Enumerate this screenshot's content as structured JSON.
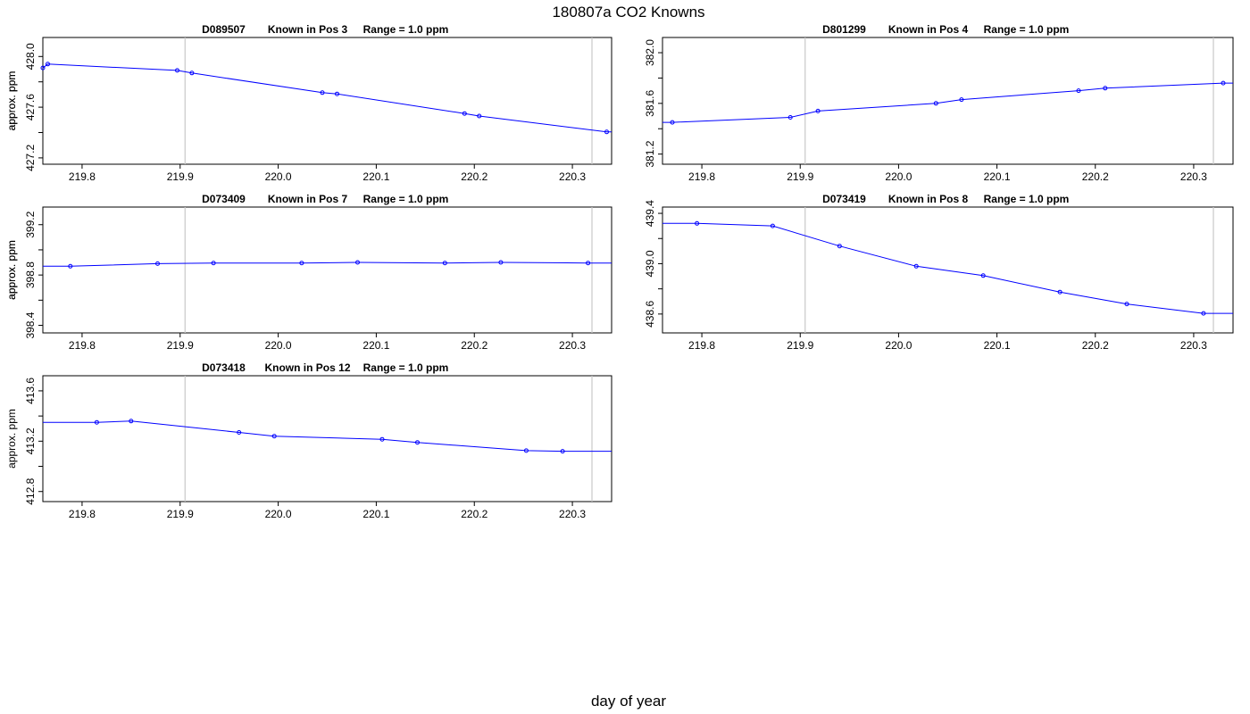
{
  "title": "180807a   CO2 Knowns",
  "xlabel": "day of year",
  "chart_data": [
    {
      "type": "line",
      "title_id": "D089507",
      "title_pos": "Known in Pos 3",
      "title_range": "Range = 1.0 ppm",
      "ylabel": "approx. ppm",
      "xlim": [
        219.76,
        220.34
      ],
      "ylim": [
        427.15,
        428.15
      ],
      "x_ticks": [
        "219.8",
        "219.9",
        "220.0",
        "220.1",
        "220.2",
        "220.3"
      ],
      "y_ticks": [
        "427.2",
        "427.6",
        "428.0"
      ],
      "vline": 219.905,
      "line": [
        [
          219.76,
          427.91
        ],
        [
          219.765,
          427.94
        ],
        [
          219.897,
          427.89
        ],
        [
          219.912,
          427.87
        ],
        [
          220.045,
          427.715
        ],
        [
          220.06,
          427.705
        ],
        [
          220.19,
          427.55
        ],
        [
          220.205,
          427.53
        ],
        [
          220.335,
          427.405
        ],
        [
          220.34,
          427.405
        ]
      ],
      "points": [
        [
          219.76,
          427.91
        ],
        [
          219.765,
          427.94
        ],
        [
          219.897,
          427.89
        ],
        [
          219.912,
          427.87
        ],
        [
          220.045,
          427.715
        ],
        [
          220.06,
          427.705
        ],
        [
          220.19,
          427.55
        ],
        [
          220.205,
          427.53
        ],
        [
          220.335,
          427.405
        ]
      ]
    },
    {
      "type": "line",
      "title_id": "D801299",
      "title_pos": "Known in Pos 4",
      "title_range": "Range = 1.0 ppm",
      "ylabel": "approx. ppm",
      "xlim": [
        219.76,
        220.34
      ],
      "ylim": [
        381.12,
        382.12
      ],
      "x_ticks": [
        "219.8",
        "219.9",
        "220.0",
        "220.1",
        "220.2",
        "220.3"
      ],
      "y_ticks": [
        "381.2",
        "381.6",
        "382.0"
      ],
      "vline": 219.905,
      "line": [
        [
          219.76,
          381.45
        ],
        [
          219.77,
          381.45
        ],
        [
          219.89,
          381.49
        ],
        [
          219.918,
          381.54
        ],
        [
          220.038,
          381.6
        ],
        [
          220.064,
          381.63
        ],
        [
          220.183,
          381.7
        ],
        [
          220.21,
          381.72
        ],
        [
          220.33,
          381.76
        ],
        [
          220.34,
          381.76
        ]
      ],
      "points": [
        [
          219.77,
          381.45
        ],
        [
          219.89,
          381.49
        ],
        [
          219.918,
          381.54
        ],
        [
          220.038,
          381.6
        ],
        [
          220.064,
          381.63
        ],
        [
          220.183,
          381.7
        ],
        [
          220.21,
          381.72
        ],
        [
          220.33,
          381.76
        ]
      ]
    },
    {
      "type": "line",
      "title_id": "D073409",
      "title_pos": "Known in Pos 7",
      "title_range": "Range = 1.0 ppm",
      "ylabel": "approx. ppm",
      "xlim": [
        219.76,
        220.34
      ],
      "ylim": [
        398.34,
        399.34
      ],
      "x_ticks": [
        "219.8",
        "219.9",
        "220.0",
        "220.1",
        "220.2",
        "220.3"
      ],
      "y_ticks": [
        "398.4",
        "398.8",
        "399.2"
      ],
      "vline": 219.905,
      "line": [
        [
          219.76,
          398.87
        ],
        [
          219.788,
          398.87
        ],
        [
          219.877,
          398.89
        ],
        [
          219.934,
          398.895
        ],
        [
          220.024,
          398.895
        ],
        [
          220.081,
          398.9
        ],
        [
          220.17,
          398.895
        ],
        [
          220.227,
          398.9
        ],
        [
          220.316,
          398.895
        ],
        [
          220.34,
          398.895
        ]
      ],
      "points": [
        [
          219.788,
          398.87
        ],
        [
          219.877,
          398.89
        ],
        [
          219.934,
          398.895
        ],
        [
          220.024,
          398.895
        ],
        [
          220.081,
          398.9
        ],
        [
          220.17,
          398.895
        ],
        [
          220.227,
          398.9
        ],
        [
          220.316,
          398.895
        ]
      ]
    },
    {
      "type": "line",
      "title_id": "D073419",
      "title_pos": "Known in Pos 8",
      "title_range": "Range = 1.0 ppm",
      "ylabel": "approx. ppm",
      "xlim": [
        219.76,
        220.34
      ],
      "ylim": [
        438.45,
        439.45
      ],
      "x_ticks": [
        "219.8",
        "219.9",
        "220.0",
        "220.1",
        "220.2",
        "220.3"
      ],
      "y_ticks": [
        "438.6",
        "439.0",
        "439.4"
      ],
      "vline": 219.905,
      "line": [
        [
          219.76,
          439.32
        ],
        [
          219.795,
          439.32
        ],
        [
          219.872,
          439.3
        ],
        [
          219.94,
          439.14
        ],
        [
          220.018,
          438.98
        ],
        [
          220.086,
          438.905
        ],
        [
          220.164,
          438.775
        ],
        [
          220.232,
          438.68
        ],
        [
          220.31,
          438.605
        ],
        [
          220.34,
          438.605
        ]
      ],
      "points": [
        [
          219.795,
          439.32
        ],
        [
          219.872,
          439.3
        ],
        [
          219.94,
          439.14
        ],
        [
          220.018,
          438.98
        ],
        [
          220.086,
          438.905
        ],
        [
          220.164,
          438.775
        ],
        [
          220.232,
          438.68
        ],
        [
          220.31,
          438.605
        ]
      ]
    },
    {
      "type": "line",
      "title_id": "D073418",
      "title_pos": "Known in Pos 12",
      "title_range": "Range = 1.0 ppm",
      "ylabel": "approx. ppm",
      "xlim": [
        219.76,
        220.34
      ],
      "ylim": [
        412.72,
        413.72
      ],
      "x_ticks": [
        "219.8",
        "219.9",
        "220.0",
        "220.1",
        "220.2",
        "220.3"
      ],
      "y_ticks": [
        "412.8",
        "413.2",
        "413.6"
      ],
      "vline": 219.905,
      "line": [
        [
          219.76,
          413.35
        ],
        [
          219.815,
          413.35
        ],
        [
          219.85,
          413.36
        ],
        [
          219.96,
          413.27
        ],
        [
          219.996,
          413.24
        ],
        [
          220.106,
          413.215
        ],
        [
          220.142,
          413.19
        ],
        [
          220.253,
          413.125
        ],
        [
          220.29,
          413.12
        ],
        [
          220.34,
          413.12
        ]
      ],
      "points": [
        [
          219.815,
          413.35
        ],
        [
          219.85,
          413.36
        ],
        [
          219.96,
          413.27
        ],
        [
          219.996,
          413.24
        ],
        [
          220.106,
          413.215
        ],
        [
          220.142,
          413.19
        ],
        [
          220.253,
          413.125
        ],
        [
          220.29,
          413.12
        ]
      ]
    }
  ]
}
